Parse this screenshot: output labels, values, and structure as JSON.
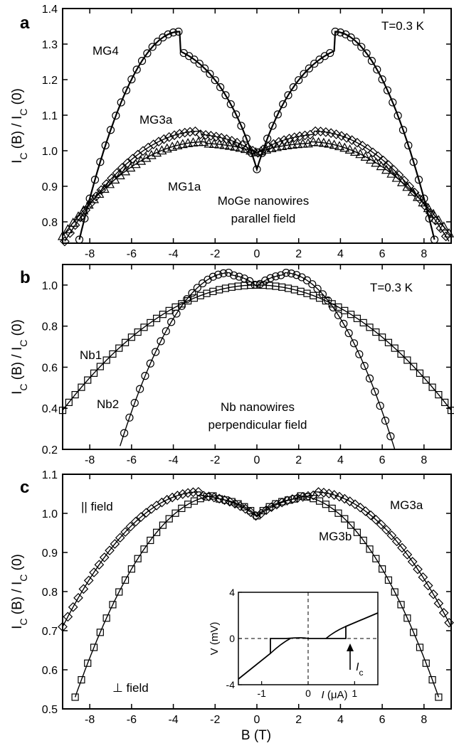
{
  "chart_data": [
    {
      "panel_label": "a",
      "type": "scatter",
      "ylabel_main": "I",
      "ylabel_sub": "C",
      "ylabel_mid": " (B) / I",
      "ylabel_sub2": "C",
      "ylabel_end": " (0)",
      "xlim": [
        -9.3,
        9.3
      ],
      "ylim": [
        0.74,
        1.4
      ],
      "xticks": [
        "-8",
        "-6",
        "-4",
        "-2",
        "0",
        "2",
        "4",
        "6",
        "8"
      ],
      "yticks": [
        "0.8",
        "0.9",
        "1.0",
        "1.1",
        "1.2",
        "1.3",
        "1.4"
      ],
      "annotations": {
        "temperature": "T=0.3 K",
        "mg4": "MG4",
        "mg3a": "MG3a",
        "mg1a": "MG1a",
        "desc1": "MoGe nanowires",
        "desc2": "parallel field"
      },
      "series": [
        {
          "name": "MG4",
          "marker": "circle",
          "peak_B": 3.7,
          "peak": 1.335,
          "low_B": 8.5,
          "low": 0.75
        },
        {
          "name": "MG3a",
          "marker": "diamond",
          "peak_B": 2.7,
          "peak": 1.055,
          "low_B": 9.2,
          "low": 0.745
        },
        {
          "name": "MG1a",
          "marker": "triangle",
          "peak_B": 2.5,
          "peak": 1.025,
          "low_B": 9.3,
          "low": 0.76
        }
      ]
    },
    {
      "panel_label": "b",
      "type": "scatter",
      "ylabel_main": "I",
      "ylabel_sub": "C",
      "ylabel_mid": " (B) / I",
      "ylabel_sub2": "C",
      "ylabel_end": " (0)",
      "xlim": [
        -9.3,
        9.3
      ],
      "ylim": [
        0.2,
        1.1
      ],
      "xticks": [
        "-8",
        "-6",
        "-4",
        "-2",
        "0",
        "2",
        "4",
        "6",
        "8"
      ],
      "yticks": [
        "0.2",
        "0.4",
        "0.6",
        "0.8",
        "1.0"
      ],
      "annotations": {
        "temperature": "T=0.3 K",
        "nb1": "Nb1",
        "nb2": "Nb2",
        "desc1": "Nb nanowires",
        "desc2": "perpendicular field"
      },
      "series": [
        {
          "name": "Nb1",
          "marker": "square",
          "peak_B": 0,
          "peak": 1.0,
          "low_B": 9.3,
          "low": 0.39
        },
        {
          "name": "Nb2",
          "marker": "circle",
          "peak_B": 1.3,
          "peak": 1.06,
          "low_B": 6.6,
          "low": 0.2
        }
      ]
    },
    {
      "panel_label": "c",
      "type": "scatter",
      "ylabel_main": "I",
      "ylabel_sub": "C",
      "ylabel_mid": " (B) / I",
      "ylabel_sub2": "C",
      "ylabel_end": " (0)",
      "xlabel": "B (T)",
      "xlim": [
        -9.3,
        9.3
      ],
      "ylim": [
        0.5,
        1.1
      ],
      "xticks": [
        "-8",
        "-6",
        "-4",
        "-2",
        "0",
        "2",
        "4",
        "6",
        "8"
      ],
      "yticks": [
        "0.5",
        "0.6",
        "0.7",
        "0.8",
        "0.9",
        "1.0",
        "1.1"
      ],
      "annotations": {
        "parallel": "|| field",
        "perp": "⊥  field",
        "mg3a": "MG3a",
        "mg3b": "MG3b"
      },
      "series": [
        {
          "name": "MG3a",
          "marker": "diamond",
          "peak_B": 2.7,
          "peak": 1.055,
          "low_B": 9.3,
          "low": 0.71
        },
        {
          "name": "MG3b",
          "marker": "square",
          "peak_B": 1.9,
          "peak": 1.045,
          "low_B": 8.7,
          "low": 0.53
        }
      ],
      "inset": {
        "xlabel_var": "I",
        "xlabel_unit": " (μA)",
        "ylabel": "V (mV)",
        "xlim": [
          -1.5,
          1.5
        ],
        "ylim": [
          -4,
          4
        ],
        "xticks": [
          "-1",
          "0",
          "1"
        ],
        "yticks": [
          "4",
          "0",
          "-4"
        ],
        "arrow_label_main": "I",
        "arrow_label_sub": "c"
      }
    }
  ]
}
